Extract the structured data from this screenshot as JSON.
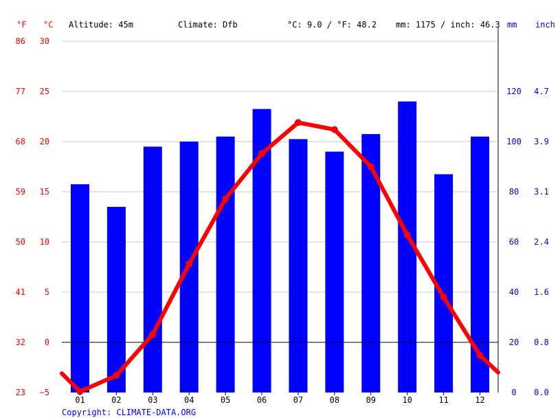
{
  "header": {
    "unit_f": "°F",
    "unit_c": "°C",
    "altitude": "Altitude: 45m",
    "climate": "Climate: Dfb",
    "avg_temp": "°C: 9.0 / °F: 48.2",
    "precip": "mm: 1175 / inch: 46.3",
    "unit_mm": "mm",
    "unit_inch": "inch"
  },
  "footer": {
    "copyright": "Copyright: CLIMATE-DATA.ORG"
  },
  "colors": {
    "temperature": "#ff0000",
    "precipitation": "#0000ff",
    "grid": "#c8c8c8",
    "zero_line": "#000000"
  },
  "chart_data": {
    "type": "bar+line",
    "categories": [
      "01",
      "02",
      "03",
      "04",
      "05",
      "06",
      "07",
      "08",
      "09",
      "10",
      "11",
      "12"
    ],
    "series": [
      {
        "kind": "bar",
        "axis": "right",
        "unit": "mm",
        "values": [
          83,
          74,
          98,
          100,
          102,
          113,
          101,
          96,
          103,
          116,
          87,
          102
        ]
      },
      {
        "kind": "line",
        "axis": "left",
        "unit": "°C",
        "values": [
          -4.9,
          -3.3,
          0.8,
          7.8,
          14.3,
          18.8,
          21.9,
          21.2,
          17.5,
          10.7,
          4.5,
          -1.3
        ],
        "edge_values": [
          -3.1,
          -3.0
        ]
      }
    ],
    "axes": {
      "celsius": {
        "ticks": [
          "30",
          "25",
          "20",
          "15",
          "10",
          "5",
          "0",
          "−5"
        ],
        "ylim": [
          -5,
          30
        ]
      },
      "fahrenheit": {
        "ticks": [
          "86",
          "77",
          "68",
          "59",
          "50",
          "41",
          "32",
          "23"
        ]
      },
      "mm": {
        "ticks": [
          "120",
          "100",
          "80",
          "60",
          "40",
          "20",
          "0"
        ],
        "ylim": [
          0,
          140
        ]
      },
      "inch": {
        "ticks": [
          "4.7",
          "3.9",
          "3.1",
          "2.4",
          "1.6",
          "0.8",
          "0.0"
        ]
      }
    },
    "grid": true
  }
}
